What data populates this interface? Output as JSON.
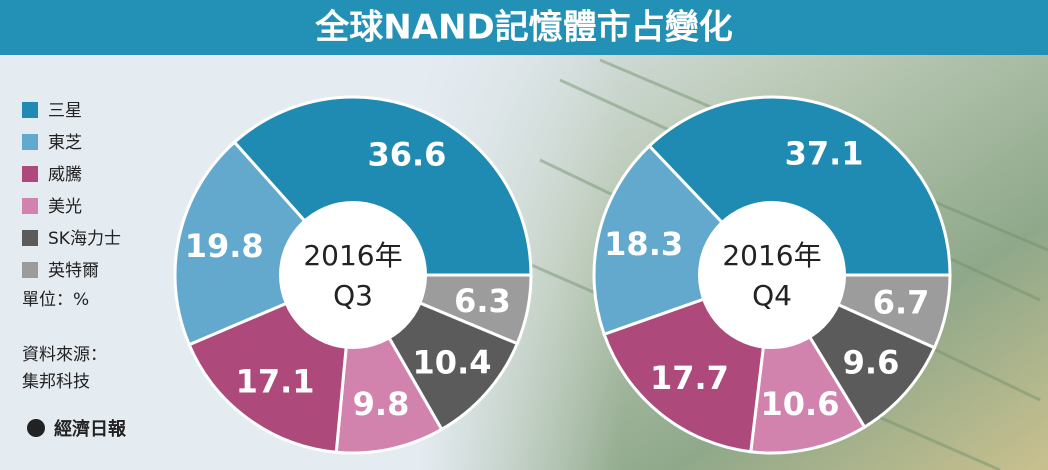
{
  "title": "全球NAND記憶體市占變化",
  "legend": {
    "categories": [
      "三星",
      "東芝",
      "威騰",
      "美光",
      "SK海力士",
      "英特爾"
    ],
    "colors": [
      "#1f8ab2",
      "#62a9cd",
      "#ad497b",
      "#d183ae",
      "#5b5b5b",
      "#9c9c9c"
    ]
  },
  "unit": "單位：%",
  "source": [
    "資料來源：",
    "集邦科技"
  ],
  "brand": "經濟日報",
  "chart_data": [
    {
      "type": "pie",
      "center_label": [
        "2016年",
        "Q3"
      ],
      "values": [
        36.6,
        19.8,
        17.1,
        9.8,
        10.4,
        6.3
      ]
    },
    {
      "type": "pie",
      "center_label": [
        "2016年",
        "Q4"
      ],
      "values": [
        37.1,
        18.3,
        17.7,
        10.6,
        9.6,
        6.7
      ]
    }
  ]
}
